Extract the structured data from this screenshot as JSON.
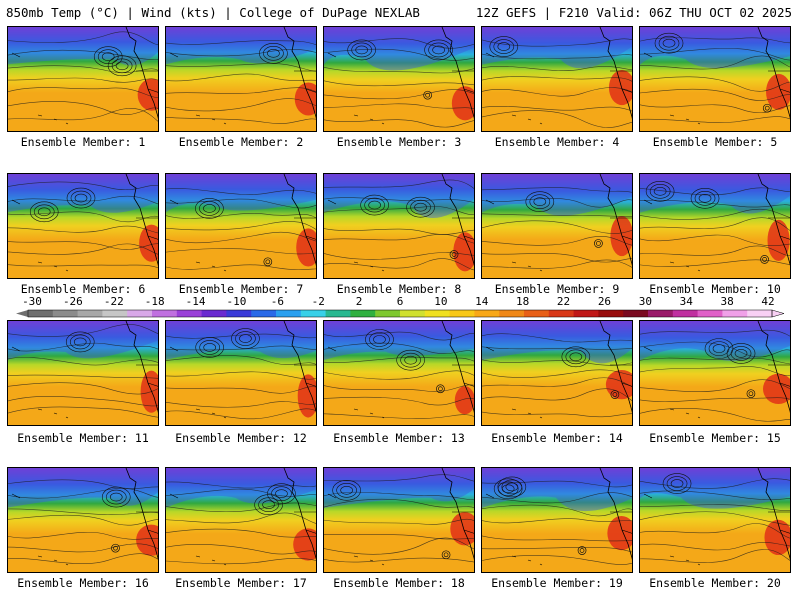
{
  "header": {
    "left_title": "850mb Temp (°C) | Wind (kts) | College of DuPage NEXLAB",
    "right_title": "12Z GEFS | F210 Valid: 06Z THU OCT 02 2025"
  },
  "members": [
    {
      "label": "Ensemble Member: 1"
    },
    {
      "label": "Ensemble Member: 2"
    },
    {
      "label": "Ensemble Member: 3"
    },
    {
      "label": "Ensemble Member: 4"
    },
    {
      "label": "Ensemble Member: 5"
    },
    {
      "label": "Ensemble Member: 6"
    },
    {
      "label": "Ensemble Member: 7"
    },
    {
      "label": "Ensemble Member: 8"
    },
    {
      "label": "Ensemble Member: 9"
    },
    {
      "label": "Ensemble Member: 10"
    },
    {
      "label": "Ensemble Member: 11"
    },
    {
      "label": "Ensemble Member: 12"
    },
    {
      "label": "Ensemble Member: 13"
    },
    {
      "label": "Ensemble Member: 14"
    },
    {
      "label": "Ensemble Member: 15"
    },
    {
      "label": "Ensemble Member: 16"
    },
    {
      "label": "Ensemble Member: 17"
    },
    {
      "label": "Ensemble Member: 18"
    },
    {
      "label": "Ensemble Member: 19"
    },
    {
      "label": "Ensemble Member: 20"
    }
  ],
  "colorbar": {
    "labels": [
      "-30",
      "-26",
      "-22",
      "-18",
      "-14",
      "-10",
      "-6",
      "-2",
      "2",
      "6",
      "10",
      "14",
      "18",
      "22",
      "26",
      "30",
      "34",
      "38",
      "42"
    ],
    "colors": [
      "#6f6f6f",
      "#8c8c8c",
      "#a8a8a8",
      "#c6c6c6",
      "#d8a8e8",
      "#c070e0",
      "#9a40d8",
      "#6a2ad0",
      "#3a3ad8",
      "#2a6ae8",
      "#2aa0f0",
      "#38d0e8",
      "#28b890",
      "#30b040",
      "#7ec830",
      "#d0e030",
      "#f0e020",
      "#f8c818",
      "#f8a818",
      "#f08818",
      "#e86018",
      "#d83818",
      "#c01818",
      "#980c0c",
      "#7a0a20",
      "#9a1a6a",
      "#c030a0",
      "#e060c8",
      "#f0a0e8",
      "#f8d0f4"
    ]
  },
  "field_colors": {
    "cold_top": "#9a2ad0",
    "cold_mid": "#3a5ae0",
    "cool": "#2ab0e0",
    "green": "#30a840",
    "yellowgreen": "#b8d828",
    "yellow": "#f0d020",
    "orange": "#f4a818",
    "hot_red": "#e03018"
  }
}
